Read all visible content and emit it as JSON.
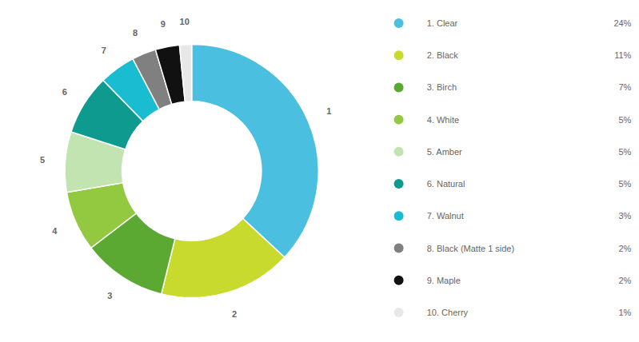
{
  "chart_data": {
    "type": "pie",
    "categories": [
      "1. Clear",
      "2. Black",
      "3. Birch",
      "4. White",
      "5. Amber",
      "6. Natural",
      "7. Walnut",
      "8. Black (Matte 1 side)",
      "9. Maple",
      "10. Cherry"
    ],
    "values": [
      24,
      11,
      7,
      5,
      5,
      5,
      3,
      2,
      2,
      1
    ],
    "value_labels": [
      "24%",
      "11%",
      "7%",
      "5%",
      "5%",
      "5%",
      "3%",
      "2%",
      "2%",
      "1%"
    ],
    "annotations": [
      "1",
      "2",
      "3",
      "4",
      "5",
      "6",
      "7",
      "8",
      "9",
      "10"
    ],
    "colors": [
      "#4BBFE0",
      "#C8DA2E",
      "#5BA832",
      "#93C940",
      "#C2E4B0",
      "#0E9A8E",
      "#1ABCD2",
      "#808080",
      "#111111",
      "#E8E8E8"
    ],
    "legend": "right"
  }
}
